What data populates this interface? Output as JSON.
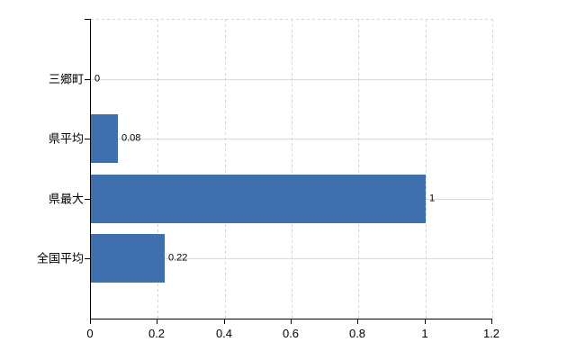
{
  "chart_data": {
    "type": "bar",
    "orientation": "horizontal",
    "title": "",
    "xlabel": "",
    "ylabel": "",
    "categories": [
      "三郷町",
      "県平均",
      "県最大",
      "全国平均"
    ],
    "values": [
      0,
      0.08,
      1,
      0.22
    ],
    "value_labels": [
      "0",
      "0.08",
      "1",
      "0.22"
    ],
    "xlim": [
      0,
      1.2
    ],
    "x_ticks": [
      0,
      0.2,
      0.4,
      0.6,
      0.8,
      1,
      1.2
    ],
    "x_tick_labels": [
      "0",
      "0.2",
      "0.4",
      "0.6",
      "0.8",
      "1",
      "1.2"
    ],
    "grid": true,
    "legend": false,
    "colors": {
      "bar": "#406fad",
      "axis": "#000000",
      "grid_horizontal": "#d5ddd5",
      "grid_vertical": "#d7d1d8",
      "text": "#000000",
      "background": "#ffffff"
    }
  }
}
